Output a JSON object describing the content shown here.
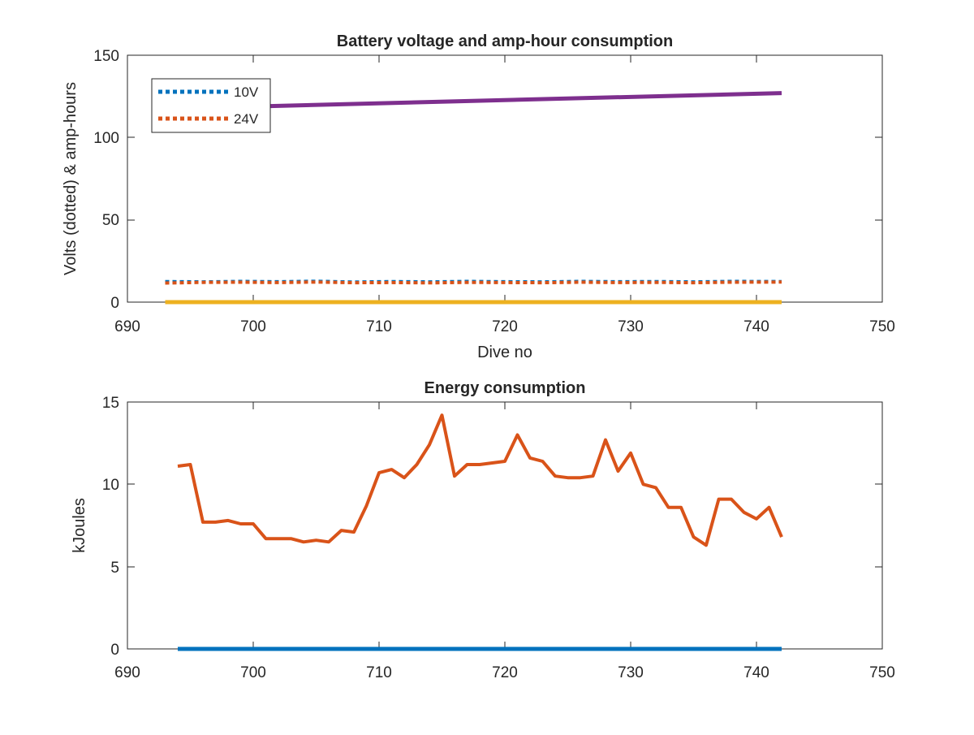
{
  "chart_data": [
    {
      "type": "line",
      "title": "Battery voltage and amp-hour consumption",
      "xlabel": "Dive no",
      "ylabel": "Volts (dotted) & amp-hours",
      "xlim": [
        690,
        750
      ],
      "ylim": [
        0,
        150
      ],
      "xticks": [
        "690",
        "700",
        "710",
        "720",
        "730",
        "740",
        "750"
      ],
      "yticks": [
        "0",
        "50",
        "100",
        "150"
      ],
      "grid": false,
      "legend_position": "top-left",
      "series": [
        {
          "name": "10V",
          "style": "dotted",
          "color": "#0072BD",
          "x": [
            693,
            696,
            699,
            702,
            705,
            708,
            711,
            714,
            717,
            720,
            723,
            726,
            729,
            732,
            735,
            738,
            742
          ],
          "y": [
            12.5,
            12.3,
            12.6,
            12.4,
            12.7,
            12.2,
            12.5,
            12.3,
            12.6,
            12.4,
            12.3,
            12.6,
            12.4,
            12.5,
            12.3,
            12.6,
            12.5
          ]
        },
        {
          "name": "24V",
          "style": "dotted",
          "color": "#D95319",
          "x": [
            693,
            696,
            699,
            702,
            705,
            708,
            711,
            714,
            717,
            720,
            723,
            726,
            729,
            732,
            735,
            738,
            742
          ],
          "y": [
            11.6,
            12.0,
            12.1,
            11.9,
            12.2,
            11.8,
            11.9,
            11.7,
            12.0,
            11.9,
            11.8,
            12.1,
            11.9,
            12.0,
            11.8,
            12.1,
            12.2
          ]
        },
        {
          "style": "solid",
          "color": "#EDB120",
          "x": [
            693,
            742
          ],
          "y": [
            0,
            0
          ]
        },
        {
          "style": "solid",
          "color": "#7E2F8E",
          "x": [
            693,
            742
          ],
          "y": [
            117.5,
            127
          ]
        }
      ]
    },
    {
      "type": "line",
      "title": "Energy consumption",
      "xlabel": "",
      "ylabel": "kJoules",
      "xlim": [
        690,
        750
      ],
      "ylim": [
        0,
        15
      ],
      "xticks": [
        "690",
        "700",
        "710",
        "720",
        "730",
        "740",
        "750"
      ],
      "yticks": [
        "0",
        "5",
        "10",
        "15"
      ],
      "grid": false,
      "series": [
        {
          "style": "solid",
          "color": "#0072BD",
          "x": [
            694,
            742
          ],
          "y": [
            0,
            0
          ]
        },
        {
          "style": "solid",
          "color": "#D95319",
          "x": [
            694,
            695,
            696,
            697,
            698,
            699,
            700,
            701,
            702,
            703,
            704,
            705,
            706,
            707,
            708,
            709,
            710,
            711,
            712,
            713,
            714,
            715,
            716,
            717,
            718,
            719,
            720,
            721,
            722,
            723,
            724,
            725,
            726,
            727,
            728,
            729,
            730,
            731,
            732,
            733,
            734,
            735,
            736,
            737,
            738,
            739,
            740,
            741,
            742
          ],
          "y": [
            11.1,
            11.2,
            7.7,
            7.7,
            7.8,
            7.6,
            7.6,
            6.7,
            6.7,
            6.7,
            6.5,
            6.6,
            6.5,
            7.2,
            7.1,
            8.7,
            10.7,
            10.9,
            10.4,
            11.2,
            12.4,
            14.2,
            10.5,
            11.2,
            11.2,
            11.3,
            11.4,
            13.0,
            11.6,
            11.4,
            10.5,
            10.4,
            10.4,
            10.5,
            12.7,
            10.8,
            11.9,
            10.0,
            9.8,
            8.6,
            8.6,
            6.8,
            6.3,
            9.1,
            9.1,
            8.3,
            7.9,
            8.6,
            6.8
          ]
        }
      ]
    }
  ]
}
